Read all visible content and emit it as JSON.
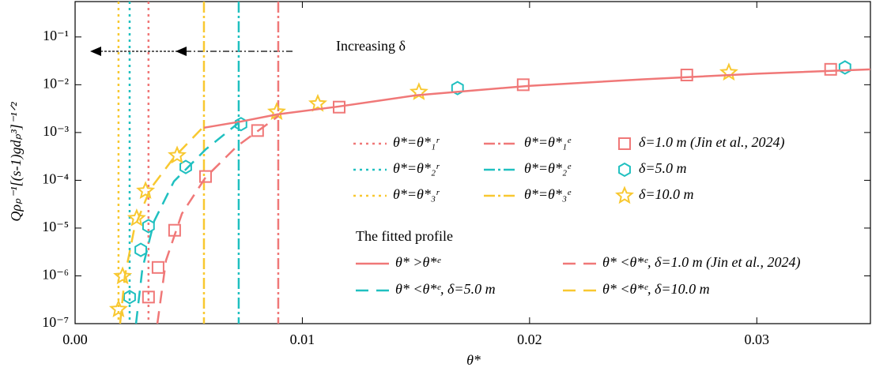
{
  "chart_data": {
    "type": "line",
    "log_y": true,
    "x_label": "θ*",
    "y_label": "Qρₚ⁻¹[(s-1)gdₚ³]⁻¹ᐟ²",
    "xlim": [
      0,
      0.035
    ],
    "ylim": [
      1e-07,
      0.55
    ],
    "xticks": [
      {
        "value": 0,
        "label": "0.00"
      },
      0.01,
      0.02,
      0.03
    ],
    "yticks": [
      {
        "value": 1e-07,
        "label": "10⁻⁷"
      },
      {
        "value": 1e-06,
        "label": "10⁻⁶"
      },
      {
        "value": 1e-05,
        "label": "10⁻⁵"
      },
      {
        "value": 0.0001,
        "label": "10⁻⁴"
      },
      {
        "value": 0.001,
        "label": "10⁻³"
      },
      {
        "value": 0.01,
        "label": "10⁻²"
      },
      {
        "value": 0.1,
        "label": "10⁻¹"
      }
    ],
    "annotation": "Increasing δ",
    "legend_subtitle": "The fitted profile",
    "series": [
      {
        "name": "θ*=θ*₁ʳ",
        "kind": "vline",
        "style": "dotted",
        "color": "#f07878",
        "x": [
          0.00323
        ]
      },
      {
        "name": "θ*=θ*₂ʳ",
        "kind": "vline",
        "style": "dotted",
        "color": "#20c0c0",
        "x": [
          0.0024
        ]
      },
      {
        "name": "θ*=θ*₃ʳ",
        "kind": "vline",
        "style": "dotted",
        "color": "#f8c830",
        "x": [
          0.00191
        ]
      },
      {
        "name": "θ*=θ*₁ᵉ",
        "kind": "vline",
        "style": "dashdot",
        "color": "#f07878",
        "x": [
          0.00894
        ]
      },
      {
        "name": "θ*=θ*₂ᵉ",
        "kind": "vline",
        "style": "dashdot",
        "color": "#20c0c0",
        "x": [
          0.0072
        ]
      },
      {
        "name": "θ*=θ*₃ᵉ",
        "kind": "vline",
        "style": "dashdot",
        "color": "#f8c830",
        "x": [
          0.00567
        ]
      },
      {
        "name": "δ=1.0 m (Jin et al., 2024)",
        "kind": "marker",
        "marker": "square",
        "color": "#f07878",
        "x": [
          0.00323,
          0.00365,
          0.00438,
          0.00574,
          0.00803,
          0.01162,
          0.01972,
          0.02692,
          0.03325
        ],
        "values": [
          3.6e-07,
          1.5e-06,
          9e-06,
          0.00012,
          0.0011,
          0.0034,
          0.01,
          0.016,
          0.021
        ]
      },
      {
        "name": "δ=5.0 m",
        "kind": "marker",
        "marker": "hexagon",
        "color": "#20c0c0",
        "x": [
          0.0024,
          0.00289,
          0.00323,
          0.00487,
          0.0073,
          0.01683,
          0.03388
        ],
        "values": [
          3.6e-07,
          3.5e-06,
          1.1e-05,
          0.00019,
          0.0015,
          0.0085,
          0.023
        ]
      },
      {
        "name": "δ=10.0 m",
        "kind": "marker",
        "marker": "star",
        "color": "#f8c830",
        "x": [
          0.00191,
          0.00209,
          0.00271,
          0.0031,
          0.00449,
          0.00887,
          0.01068,
          0.01513,
          0.02877
        ],
        "values": [
          2e-07,
          9.8e-07,
          1.6e-05,
          6e-05,
          0.00033,
          0.0027,
          0.004,
          0.007,
          0.018
        ]
      },
      {
        "name": "θ* >θ*ᵉ",
        "kind": "curve",
        "style": "solid",
        "color": "#f07878",
        "x": [
          0.00567,
          0.0073,
          0.0089,
          0.0116,
          0.015,
          0.02,
          0.025,
          0.03,
          0.035
        ],
        "values": [
          0.00126,
          0.0017,
          0.0024,
          0.0035,
          0.006,
          0.0095,
          0.013,
          0.017,
          0.021
        ]
      },
      {
        "name": "θ* <θ*ᵉ, δ=1.0 m (Jin et al., 2024)",
        "kind": "curve",
        "style": "dashed",
        "color": "#f07878",
        "x": [
          0.00362,
          0.004,
          0.0047,
          0.00574,
          0.00713,
          0.00894
        ],
        "values": [
          1e-07,
          2.1e-06,
          2e-05,
          0.000115,
          0.00052,
          0.0022
        ]
      },
      {
        "name": "θ* <θ*ᵉ, δ=5.0 m",
        "kind": "curve",
        "style": "dashed",
        "color": "#20c0c0",
        "x": [
          0.00268,
          0.00296,
          0.00348,
          0.00435,
          0.00574,
          0.0072
        ],
        "values": [
          1e-07,
          1.4e-06,
          1.4e-05,
          9.5e-05,
          0.00044,
          0.0016
        ]
      },
      {
        "name": "θ* <θ*ᵉ, δ=10.0 m",
        "kind": "curve",
        "style": "dashed",
        "color": "#f8c830",
        "x": [
          0.00198,
          0.00219,
          0.00261,
          0.0033,
          0.00435,
          0.00567
        ],
        "values": [
          1e-07,
          1e-06,
          1e-05,
          6.5e-05,
          0.0003,
          0.00135
        ]
      }
    ]
  }
}
